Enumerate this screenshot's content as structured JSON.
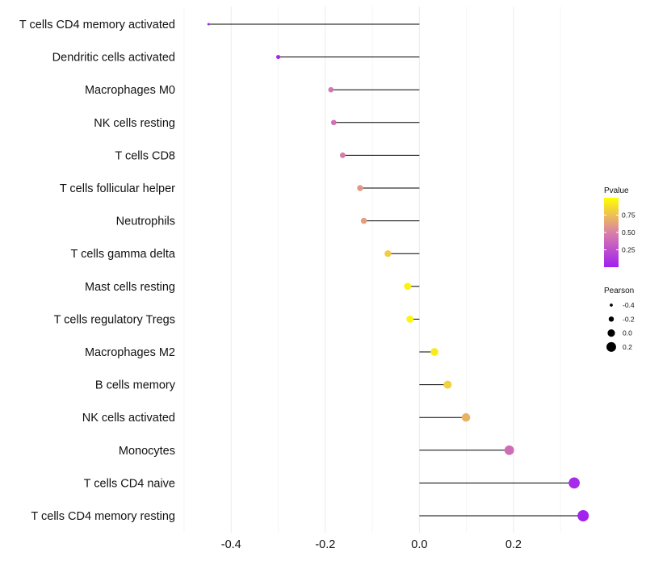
{
  "chart_data": {
    "type": "lollipop",
    "title": "",
    "xlabel": "",
    "ylabel": "",
    "xlim": [
      -0.5,
      0.37
    ],
    "x_ticks": [
      -0.4,
      -0.2,
      0.0,
      0.2
    ],
    "x_tick_labels": [
      "-0.4",
      "-0.2",
      "0.0",
      "0.2"
    ],
    "grid": true,
    "categories": [
      "T cells CD4 memory activated",
      "Dendritic cells activated",
      "Macrophages M0",
      "NK cells resting",
      "T cells CD8",
      "T cells follicular helper",
      "Neutrophils",
      "T cells gamma delta",
      "Mast cells resting",
      "T cells regulatory  Tregs",
      "Macrophages M2",
      "B cells memory",
      "NK cells activated",
      "Monocytes",
      "T cells CD4 naive",
      "T cells CD4 memory resting"
    ],
    "pearson": [
      -0.448,
      -0.3,
      -0.188,
      -0.182,
      -0.163,
      -0.126,
      -0.118,
      -0.067,
      -0.025,
      -0.02,
      0.032,
      0.06,
      0.099,
      0.191,
      0.329,
      0.348
    ],
    "pvalue": [
      0.001,
      0.03,
      0.45,
      0.42,
      0.48,
      0.6,
      0.62,
      0.8,
      0.95,
      0.96,
      0.92,
      0.82,
      0.7,
      0.4,
      0.05,
      0.02
    ],
    "legend_color": {
      "title": "Pvalue",
      "ticks": [
        "0.75",
        "0.50",
        "0.25"
      ],
      "tick_values": [
        0.75,
        0.5,
        0.25
      ],
      "low_color": "#a020f0",
      "mid_color": "#da80a8",
      "high_color": "#ffff00"
    },
    "legend_size": {
      "title": "Pearson",
      "entries": [
        "-0.4",
        "-0.2",
        "0.0",
        "0.2"
      ],
      "entry_values": [
        -0.4,
        -0.2,
        0.0,
        0.2
      ]
    },
    "legend_position": "right"
  }
}
